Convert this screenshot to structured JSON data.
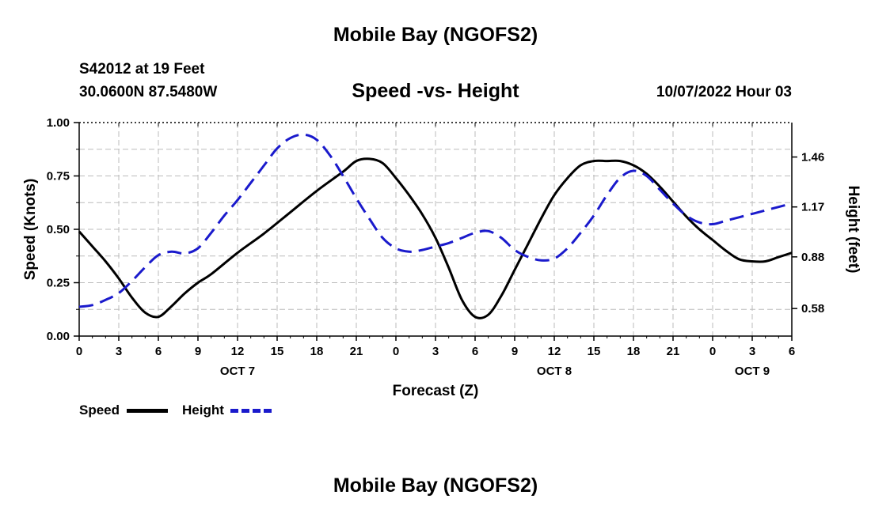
{
  "header": {
    "title": "Mobile Bay (NGOFS2)",
    "station": "S42012 at 19 Feet",
    "coords": "30.0600N  87.5480W",
    "subtitle": "Speed -vs- Height",
    "timestamp": "10/07/2022 Hour 03"
  },
  "footer": {
    "title": "Mobile Bay (NGOFS2)"
  },
  "legend": {
    "speed_label": "Speed",
    "height_label": "Height"
  },
  "chart_data": {
    "type": "line",
    "xlabel": "Forecast (Z)",
    "ylabel_left": "Speed (Knots)",
    "ylabel_right": "Height (feet)",
    "x_range_hours": [
      0,
      54
    ],
    "x_ticks": [
      "0",
      "3",
      "6",
      "9",
      "12",
      "15",
      "18",
      "21",
      "0",
      "3",
      "6",
      "9",
      "12",
      "15",
      "18",
      "21",
      "0",
      "3",
      "6"
    ],
    "day_labels": [
      {
        "label": "OCT 7",
        "hour": 12
      },
      {
        "label": "OCT 8",
        "hour": 36
      },
      {
        "label": "OCT 9",
        "hour": 51
      }
    ],
    "ylim_left": [
      0,
      1.0
    ],
    "yticks_left": [
      "0.00",
      "0.25",
      "0.50",
      "0.75",
      "1.00"
    ],
    "ylim_right": [
      0.42,
      1.66
    ],
    "yticks_right": [
      {
        "label": "0.58",
        "value": 0.58
      },
      {
        "label": "0.88",
        "value": 0.88
      },
      {
        "label": "1.17",
        "value": 1.17
      },
      {
        "label": "1.46",
        "value": 1.46
      }
    ],
    "grid": true,
    "legend_position": "bottom-left",
    "colors": {
      "speed": "#000000",
      "height": "#1a1acc"
    },
    "series": [
      {
        "name": "Speed",
        "axis": "left",
        "x": [
          0,
          1,
          2,
          3,
          4,
          5,
          6,
          7,
          8,
          9,
          10,
          12,
          14,
          16,
          18,
          20,
          21,
          22,
          23,
          24,
          25,
          26,
          27,
          28,
          29,
          30,
          31,
          32,
          33,
          34,
          35,
          36,
          37,
          38,
          39,
          40,
          41,
          42,
          43,
          44,
          45,
          46,
          47,
          48,
          49,
          50,
          51,
          52,
          53,
          54
        ],
        "values": [
          0.49,
          0.42,
          0.35,
          0.27,
          0.18,
          0.11,
          0.09,
          0.14,
          0.2,
          0.25,
          0.29,
          0.39,
          0.48,
          0.58,
          0.68,
          0.77,
          0.82,
          0.83,
          0.81,
          0.74,
          0.66,
          0.57,
          0.46,
          0.32,
          0.17,
          0.09,
          0.1,
          0.19,
          0.31,
          0.43,
          0.55,
          0.66,
          0.74,
          0.8,
          0.82,
          0.82,
          0.82,
          0.8,
          0.76,
          0.7,
          0.63,
          0.56,
          0.5,
          0.45,
          0.4,
          0.36,
          0.35,
          0.35,
          0.37,
          0.39
        ]
      },
      {
        "name": "Height",
        "axis": "right",
        "x": [
          0,
          1,
          2,
          3,
          4,
          5,
          6,
          7,
          8,
          9,
          10,
          11,
          12,
          13,
          14,
          15,
          16,
          17,
          18,
          19,
          20,
          21,
          22,
          23,
          24,
          25,
          26,
          27,
          28,
          29,
          30,
          31,
          32,
          33,
          34,
          35,
          36,
          37,
          38,
          39,
          40,
          41,
          42,
          43,
          44,
          45,
          46,
          47,
          48,
          49,
          50,
          51,
          52,
          53,
          54
        ],
        "values": [
          0.59,
          0.6,
          0.63,
          0.67,
          0.74,
          0.82,
          0.89,
          0.91,
          0.9,
          0.93,
          1.02,
          1.12,
          1.21,
          1.31,
          1.41,
          1.51,
          1.57,
          1.59,
          1.56,
          1.47,
          1.35,
          1.22,
          1.1,
          0.99,
          0.93,
          0.91,
          0.92,
          0.94,
          0.96,
          0.99,
          1.02,
          1.03,
          0.99,
          0.92,
          0.88,
          0.86,
          0.87,
          0.93,
          1.02,
          1.12,
          1.24,
          1.34,
          1.38,
          1.35,
          1.27,
          1.19,
          1.12,
          1.08,
          1.07,
          1.09,
          1.11,
          1.13,
          1.15,
          1.17,
          1.19
        ]
      }
    ]
  }
}
